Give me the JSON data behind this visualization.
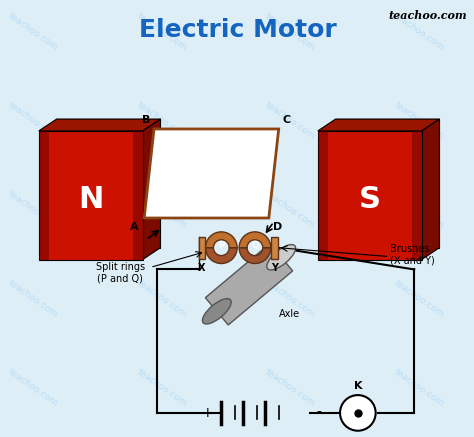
{
  "title": "Electric Motor",
  "title_color": "#1565C0",
  "title_fontsize": 18,
  "bg_color": "#ddeef6",
  "watermark": "teachoo.com",
  "magnet_N_label": "N",
  "magnet_S_label": "S",
  "coil_color": "#8B4513",
  "split_ring_label": "Split rings\n(P and Q)",
  "brush_label": "Brushes\n(X and Y)",
  "axle_label": "Axle",
  "key_label": "K",
  "face_color": "#CC1100",
  "side_color": "#7B0A00",
  "top_color": "#991500"
}
